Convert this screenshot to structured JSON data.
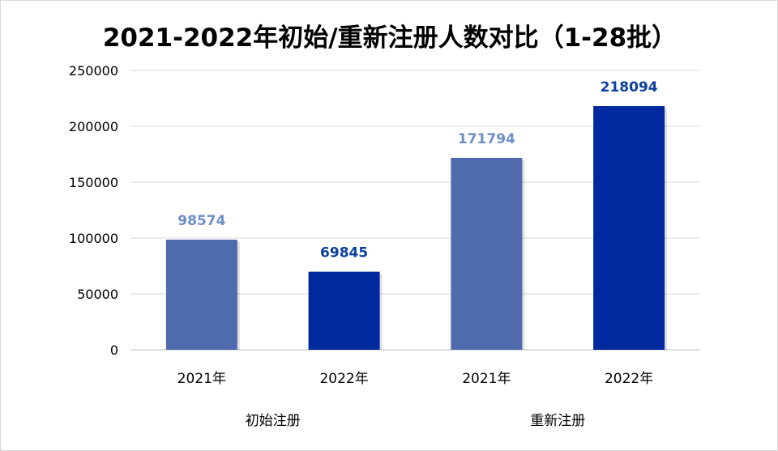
{
  "chart_data": {
    "type": "bar",
    "title": "2021-2022年初始/重新注册人数对比（1-28批）",
    "xlabel": "",
    "ylabel": "",
    "ylim": [
      0,
      250000
    ],
    "yticks": [
      0,
      50000,
      100000,
      150000,
      200000,
      250000
    ],
    "grid": true,
    "groups": [
      "初始注册",
      "重新注册"
    ],
    "categories": [
      "2021年",
      "2022年",
      "2021年",
      "2022年"
    ],
    "values": [
      98574,
      69845,
      171794,
      218094
    ],
    "data_labels": [
      "98574",
      "69845",
      "171794",
      "218094"
    ],
    "colors": {
      "2021年": "#4f6aad",
      "2022年": "#0029a0",
      "label_2021": "#6f8ec7",
      "label_2022": "#0b3fa0"
    }
  }
}
